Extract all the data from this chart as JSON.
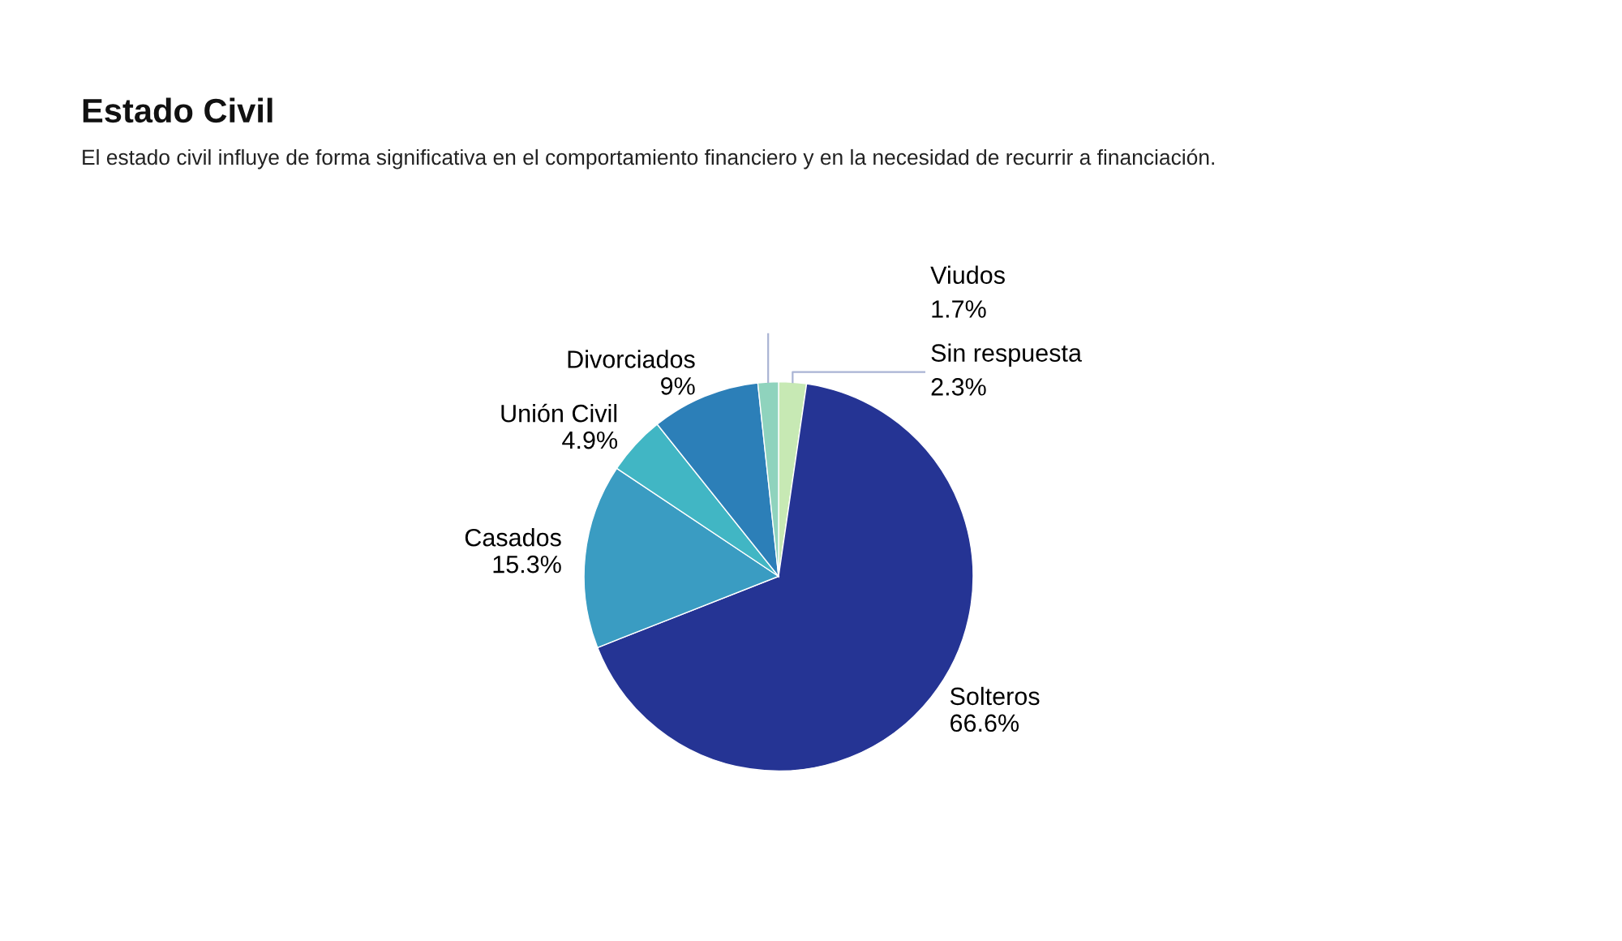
{
  "chart_data": {
    "type": "pie",
    "title": "Estado Civil",
    "subtitle": "El estado civil influye de forma significativa en el comportamiento financiero y en la necesidad de recurrir a financiación.",
    "categories": [
      "Sin respuesta",
      "Solteros",
      "Casados",
      "Unión Civil",
      "Divorciados",
      "Viudos"
    ],
    "values": [
      2.3,
      66.6,
      15.3,
      4.9,
      9,
      1.7
    ],
    "value_labels": [
      "2.3%",
      "66.6%",
      "15.3%",
      "4.9%",
      "9%",
      "1.7%"
    ],
    "colors": [
      "#c7e9b4",
      "#253494",
      "#3a9cc2",
      "#41b6c4",
      "#2c7fb8",
      "#8fd3bd"
    ]
  }
}
